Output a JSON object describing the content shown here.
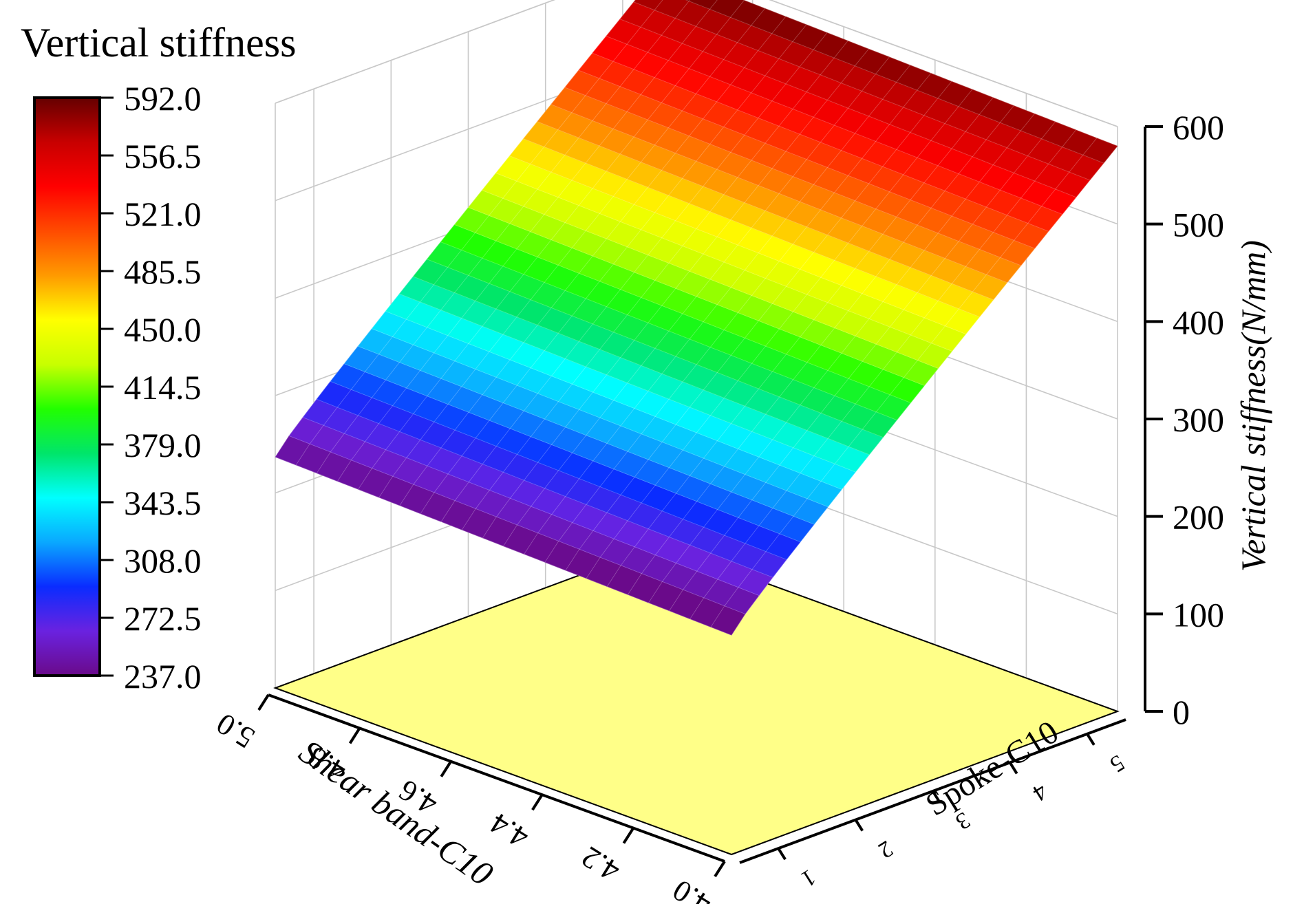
{
  "chart_data": {
    "type": "surface3d",
    "legend_title": "Vertical stiffness",
    "legend_ticks": [
      "592.0",
      "556.5",
      "521.0",
      "485.5",
      "450.0",
      "414.5",
      "379.0",
      "343.5",
      "308.0",
      "272.5",
      "237.0"
    ],
    "colorbar_range": [
      237.0,
      592.0
    ],
    "z_label": "Vertical stiffness(N/mm)",
    "z_ticks": [
      "0",
      "100",
      "200",
      "300",
      "400",
      "500",
      "600"
    ],
    "z_range": [
      0,
      600
    ],
    "x_label": "Shear band-C10",
    "x_ticks": [
      "4.0",
      "4.2",
      "4.4",
      "4.6",
      "4.8",
      "5.0"
    ],
    "x_range": [
      4.0,
      5.0
    ],
    "y_label": "Spoke-C10",
    "y_ticks": [
      "1",
      "2",
      "3",
      "4",
      "5"
    ],
    "y_range": [
      0.5,
      5.5
    ],
    "surface_z_range": [
      237.0,
      592.0
    ],
    "surface_trend": "z increases with Spoke-C10 (about 237 at 0.5 to 592 at 5.5); nearly constant along Shear band-C10",
    "floor_color": "#ffff88",
    "grid": true,
    "colormap": [
      "#6a0a8a",
      "#6a22e0",
      "#0a2cff",
      "#0aa8ff",
      "#00ffff",
      "#00e56a",
      "#22ff00",
      "#c8ff00",
      "#ffff00",
      "#ff9a00",
      "#ff4b00",
      "#ff0000",
      "#c80000",
      "#650000"
    ]
  }
}
